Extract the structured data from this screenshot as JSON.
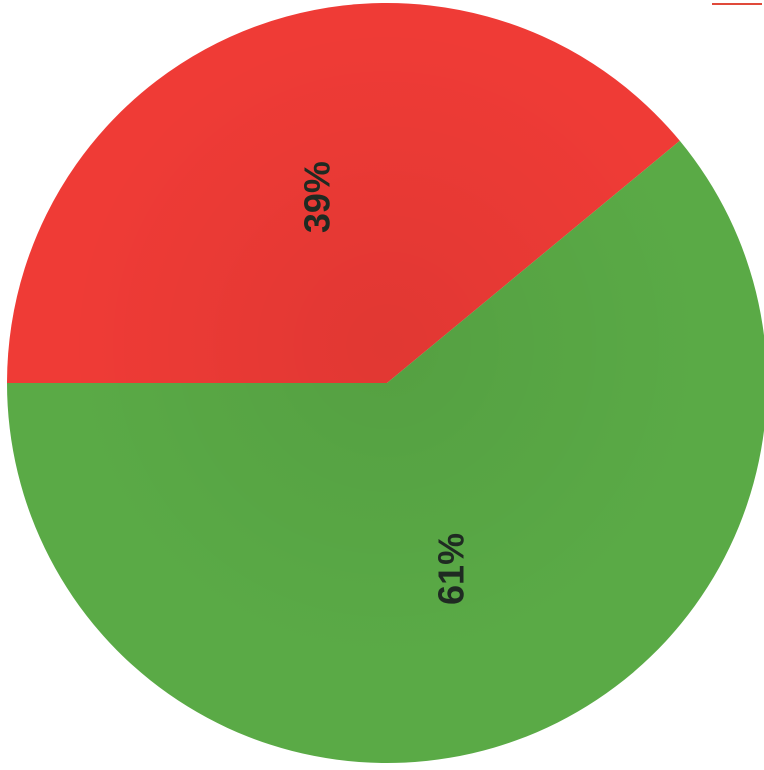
{
  "chart_data": {
    "type": "pie",
    "categories": [
      "",
      ""
    ],
    "values": [
      39,
      61
    ],
    "data_labels": [
      "39%",
      "61%"
    ],
    "colors": [
      "#ef3b36",
      "#5aaa46"
    ],
    "title": "",
    "legend": "none"
  }
}
